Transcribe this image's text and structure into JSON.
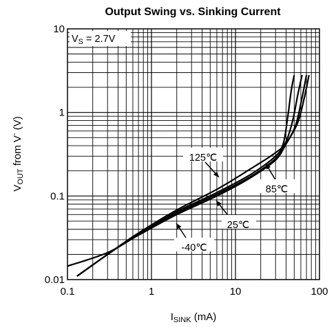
{
  "chart_data": {
    "type": "line",
    "title": "Output Swing vs. Sinking Current",
    "xlabel": {
      "main": "I",
      "sub": "SINK",
      "rest": " (mA)"
    },
    "ylabel": {
      "main": "V",
      "sub": "OUT",
      "rest": " from V",
      "sup": "-",
      "tail": " (V)"
    },
    "x_scale": "log",
    "y_scale": "log",
    "xlim": [
      0.1,
      100
    ],
    "ylim": [
      0.01,
      10
    ],
    "x_ticks": [
      "0.1",
      "1",
      "10",
      "100"
    ],
    "y_ticks": [
      "0.01",
      "0.1",
      "1",
      "10"
    ],
    "grid": true,
    "condition": {
      "main": "V",
      "sub": "S",
      "rest": " = 2.7V"
    },
    "series": [
      {
        "name": "-40℃",
        "points": [
          [
            0.13,
            0.011
          ],
          [
            0.3,
            0.02
          ],
          [
            0.7,
            0.036
          ],
          [
            2,
            0.065
          ],
          [
            6,
            0.11
          ],
          [
            15,
            0.18
          ],
          [
            30,
            0.3
          ],
          [
            40,
            0.45
          ],
          [
            48,
            0.8
          ],
          [
            55,
            1.6
          ],
          [
            62,
            2.8
          ]
        ]
      },
      {
        "name": "25℃",
        "points": [
          [
            0.13,
            0.011
          ],
          [
            0.3,
            0.02
          ],
          [
            0.7,
            0.035
          ],
          [
            2,
            0.062
          ],
          [
            6,
            0.105
          ],
          [
            15,
            0.17
          ],
          [
            30,
            0.28
          ],
          [
            40,
            0.42
          ],
          [
            52,
            0.7
          ],
          [
            62,
            1.5
          ],
          [
            70,
            2.8
          ]
        ]
      },
      {
        "name": "85℃",
        "points": [
          [
            0.1,
            0.0145
          ],
          [
            0.3,
            0.021
          ],
          [
            0.7,
            0.034
          ],
          [
            2,
            0.06
          ],
          [
            6,
            0.1
          ],
          [
            15,
            0.165
          ],
          [
            30,
            0.27
          ],
          [
            40,
            0.42
          ],
          [
            55,
            0.75
          ],
          [
            66,
            1.5
          ],
          [
            75,
            2.8
          ]
        ]
      },
      {
        "name": "125℃",
        "points": [
          [
            0.13,
            0.011
          ],
          [
            0.3,
            0.02
          ],
          [
            0.7,
            0.036
          ],
          [
            2,
            0.068
          ],
          [
            6,
            0.12
          ],
          [
            15,
            0.21
          ],
          [
            30,
            0.33
          ],
          [
            37,
            0.42
          ],
          [
            42,
            0.9
          ],
          [
            46,
            1.8
          ],
          [
            50,
            2.8
          ]
        ]
      }
    ],
    "annotations": [
      {
        "series": "125℃",
        "text": "125℃"
      },
      {
        "series": "85℃",
        "text": "85℃"
      },
      {
        "series": "25℃",
        "text": "25℃"
      },
      {
        "series": "-40℃",
        "text": "-40℃"
      }
    ]
  }
}
